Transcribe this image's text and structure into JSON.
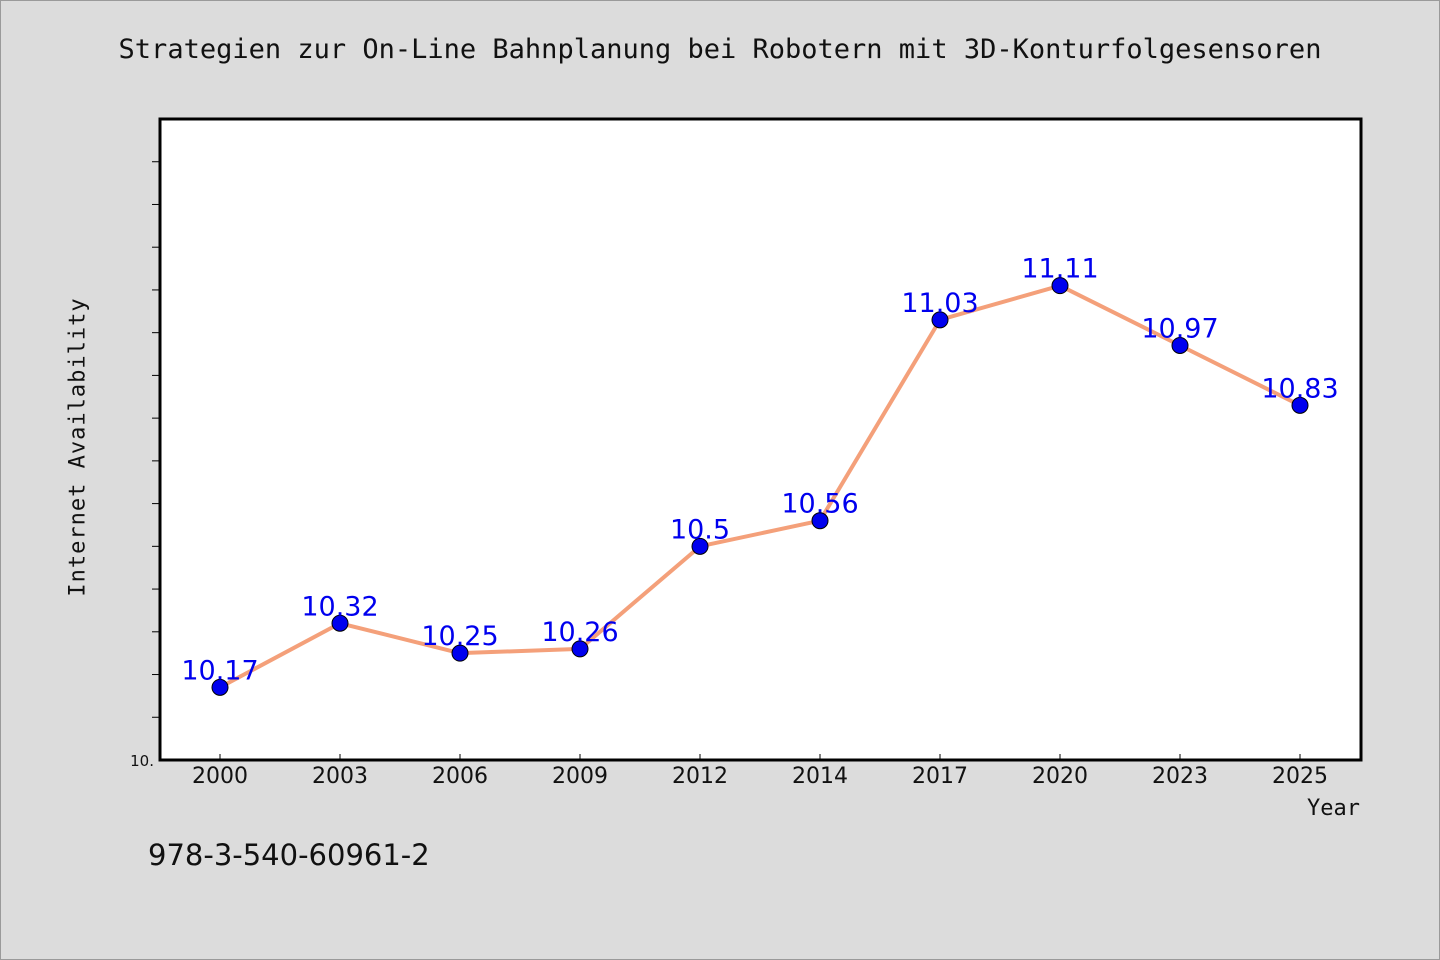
{
  "header": {
    "title": "Strategien zur On-Line Bahnplanung bei Robotern mit 3D-Konturfolgesensoren"
  },
  "footer": {
    "isbn": "978-3-540-60961-2"
  },
  "colors": {
    "background": "#dcdcdc",
    "plot_background": "#ffffff",
    "line": "#f4a07a",
    "marker": "#0000ee",
    "data_label": "#0000ee"
  },
  "chart_data": {
    "type": "line",
    "title": "Strategien zur On-Line Bahnplanung bei Robotern mit 3D-Konturfolgesensoren",
    "xlabel": "Year",
    "ylabel": "Internet Availability",
    "categories": [
      "2000",
      "2003",
      "2006",
      "2009",
      "2012",
      "2014",
      "2017",
      "2020",
      "2023",
      "2025"
    ],
    "series": [
      {
        "values": [
          10.17,
          10.32,
          10.25,
          10.26,
          10.5,
          10.56,
          11.03,
          11.11,
          10.97,
          10.83
        ],
        "value_labels": [
          "10.17",
          "10.32",
          "10.25",
          "10.26",
          "10.5",
          "10.56",
          "11.03",
          "11.11",
          "10.97",
          "10.83"
        ]
      }
    ],
    "ylim": [
      10.0,
      11.5
    ],
    "y_tick_step": 0.1,
    "y_tick_labels": [
      "10."
    ],
    "grid": false,
    "legend": "none"
  }
}
